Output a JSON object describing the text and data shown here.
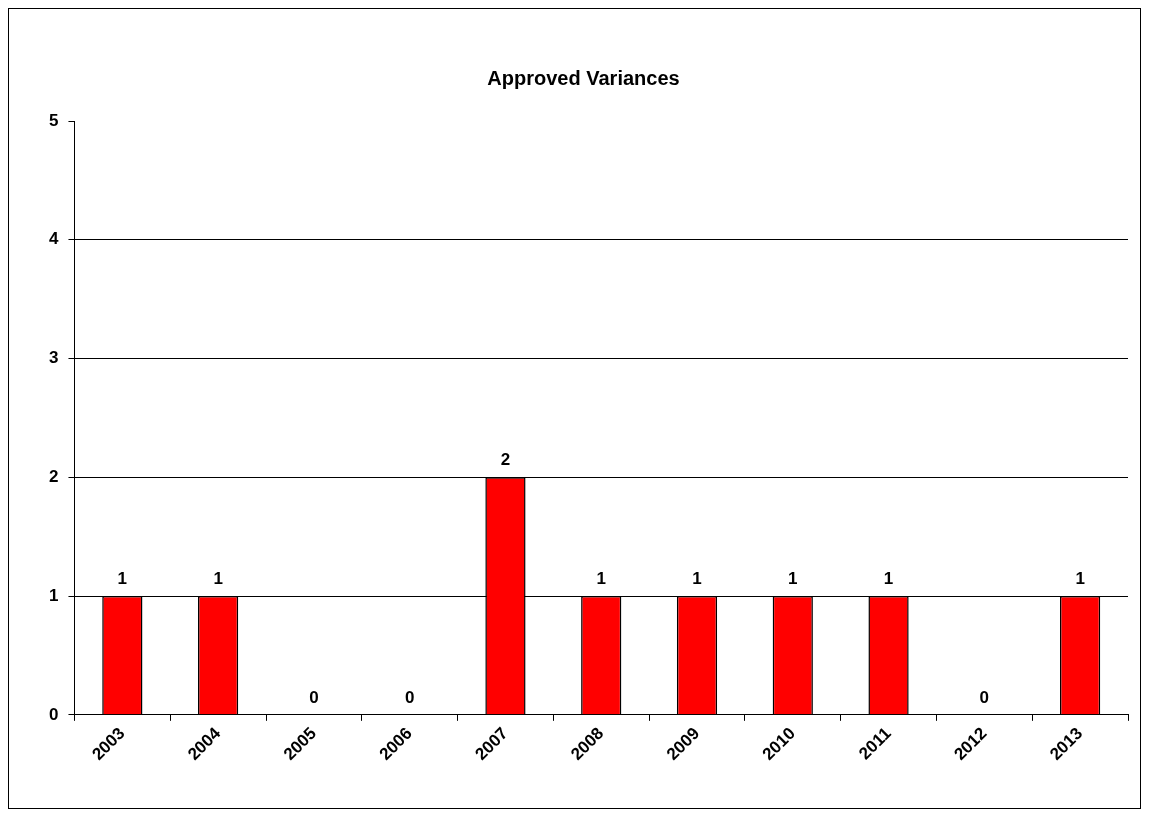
{
  "chart_data": {
    "type": "bar",
    "title": "Approved Variances",
    "categories": [
      "2003",
      "2004",
      "2005",
      "2006",
      "2007",
      "2008",
      "2009",
      "2010",
      "2011",
      "2012",
      "2013"
    ],
    "values": [
      1,
      1,
      0,
      0,
      2,
      1,
      1,
      1,
      1,
      0,
      1
    ],
    "color": "#ff0000",
    "ylim": [
      0,
      5
    ],
    "yticks": [
      0,
      1,
      2,
      3,
      4,
      5
    ],
    "grid": "y",
    "data_labels": true
  }
}
